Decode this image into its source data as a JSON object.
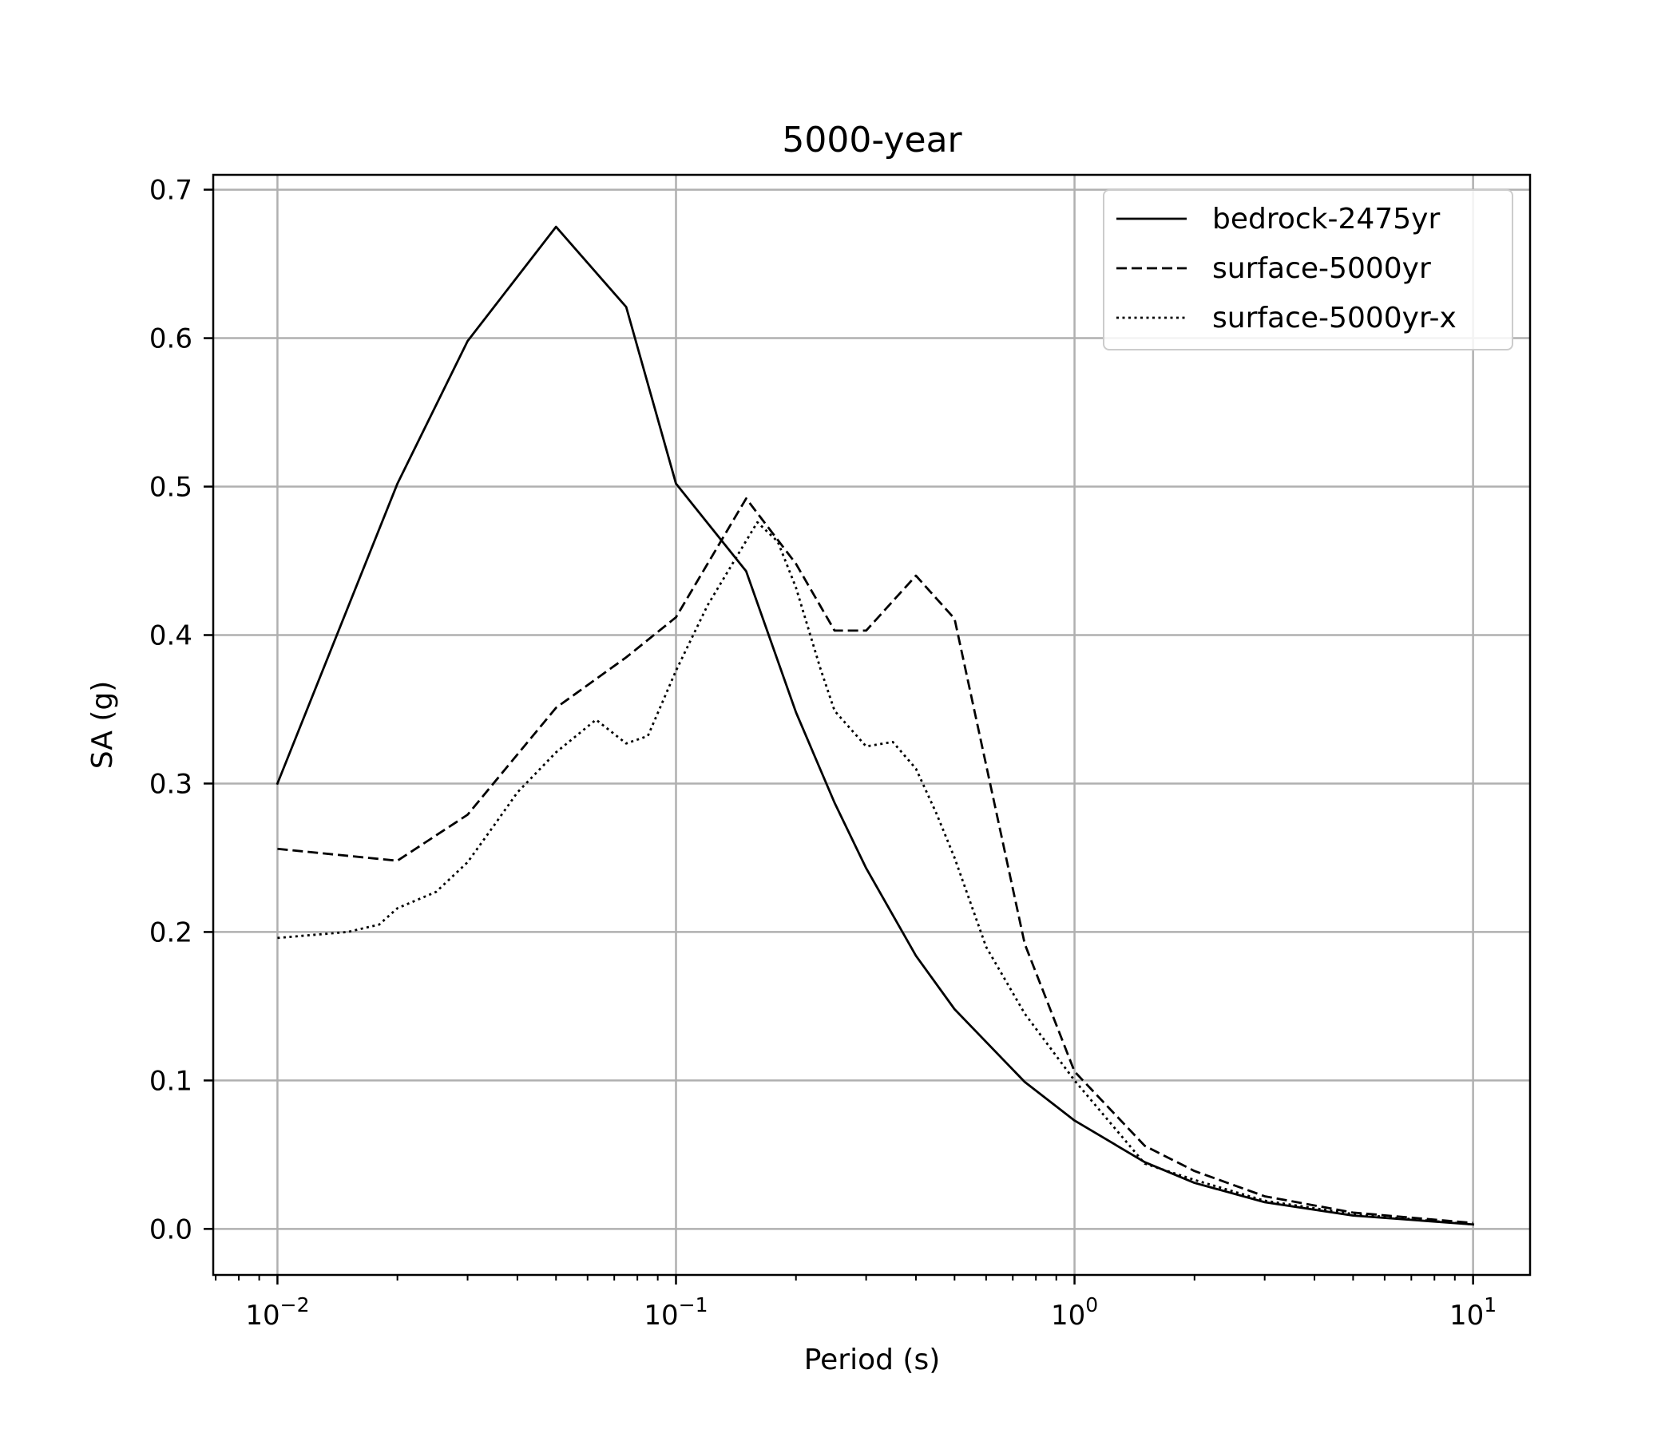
{
  "chart_data": {
    "type": "line",
    "title": "5000-year",
    "xlabel": "Period (s)",
    "ylabel": "SA (g)",
    "x_scale": "log",
    "xlim": [
      0.0069,
      13.9
    ],
    "ylim": [
      -0.031,
      0.71
    ],
    "grid": true,
    "legend_position": "top-right",
    "x_ticks": [
      {
        "value": 0.01,
        "base": "10",
        "exp": "−2"
      },
      {
        "value": 0.1,
        "base": "10",
        "exp": "−1"
      },
      {
        "value": 1,
        "base": "10",
        "exp": "0"
      },
      {
        "value": 10,
        "base": "10",
        "exp": "1"
      }
    ],
    "y_ticks": [
      0.0,
      0.1,
      0.2,
      0.3,
      0.4,
      0.5,
      0.6,
      0.7
    ],
    "y_tick_labels": [
      "0.0",
      "0.1",
      "0.2",
      "0.3",
      "0.4",
      "0.5",
      "0.6",
      "0.7"
    ],
    "series": [
      {
        "name": "bedrock-2475yr",
        "style": "solid",
        "color": "#000000",
        "points": [
          [
            0.01,
            0.3
          ],
          [
            0.02,
            0.502
          ],
          [
            0.03,
            0.598
          ],
          [
            0.05,
            0.675
          ],
          [
            0.075,
            0.621
          ],
          [
            0.1,
            0.502
          ],
          [
            0.15,
            0.443
          ],
          [
            0.2,
            0.348
          ],
          [
            0.25,
            0.287
          ],
          [
            0.3,
            0.243
          ],
          [
            0.4,
            0.184
          ],
          [
            0.5,
            0.148
          ],
          [
            0.75,
            0.099
          ],
          [
            1.0,
            0.073
          ],
          [
            1.5,
            0.045
          ],
          [
            2.0,
            0.031
          ],
          [
            3.0,
            0.018
          ],
          [
            5.0,
            0.009
          ],
          [
            10.0,
            0.003
          ]
        ]
      },
      {
        "name": "surface-5000yr",
        "style": "dashed",
        "color": "#000000",
        "points": [
          [
            0.01,
            0.256
          ],
          [
            0.02,
            0.248
          ],
          [
            0.03,
            0.279
          ],
          [
            0.05,
            0.351
          ],
          [
            0.075,
            0.385
          ],
          [
            0.1,
            0.412
          ],
          [
            0.15,
            0.492
          ],
          [
            0.2,
            0.448
          ],
          [
            0.25,
            0.403
          ],
          [
            0.3,
            0.403
          ],
          [
            0.4,
            0.44
          ],
          [
            0.5,
            0.411
          ],
          [
            0.75,
            0.192
          ],
          [
            1.0,
            0.106
          ],
          [
            1.5,
            0.056
          ],
          [
            2.0,
            0.039
          ],
          [
            3.0,
            0.022
          ],
          [
            5.0,
            0.011
          ],
          [
            10.0,
            0.004
          ]
        ]
      },
      {
        "name": "surface-5000yr-x",
        "style": "dotted",
        "color": "#000000",
        "points": [
          [
            0.01,
            0.196
          ],
          [
            0.015,
            0.2
          ],
          [
            0.018,
            0.205
          ],
          [
            0.02,
            0.216
          ],
          [
            0.025,
            0.227
          ],
          [
            0.03,
            0.247
          ],
          [
            0.035,
            0.272
          ],
          [
            0.04,
            0.294
          ],
          [
            0.05,
            0.321
          ],
          [
            0.063,
            0.343
          ],
          [
            0.075,
            0.327
          ],
          [
            0.085,
            0.332
          ],
          [
            0.1,
            0.376
          ],
          [
            0.12,
            0.42
          ],
          [
            0.16,
            0.476
          ],
          [
            0.18,
            0.463
          ],
          [
            0.2,
            0.432
          ],
          [
            0.23,
            0.378
          ],
          [
            0.25,
            0.349
          ],
          [
            0.3,
            0.325
          ],
          [
            0.35,
            0.328
          ],
          [
            0.4,
            0.31
          ],
          [
            0.45,
            0.28
          ],
          [
            0.5,
            0.25
          ],
          [
            0.6,
            0.19
          ],
          [
            0.75,
            0.145
          ],
          [
            1.0,
            0.1
          ],
          [
            1.5,
            0.044
          ],
          [
            2.0,
            0.033
          ],
          [
            3.0,
            0.019
          ],
          [
            5.0,
            0.01
          ],
          [
            10.0,
            0.003
          ]
        ]
      }
    ]
  }
}
